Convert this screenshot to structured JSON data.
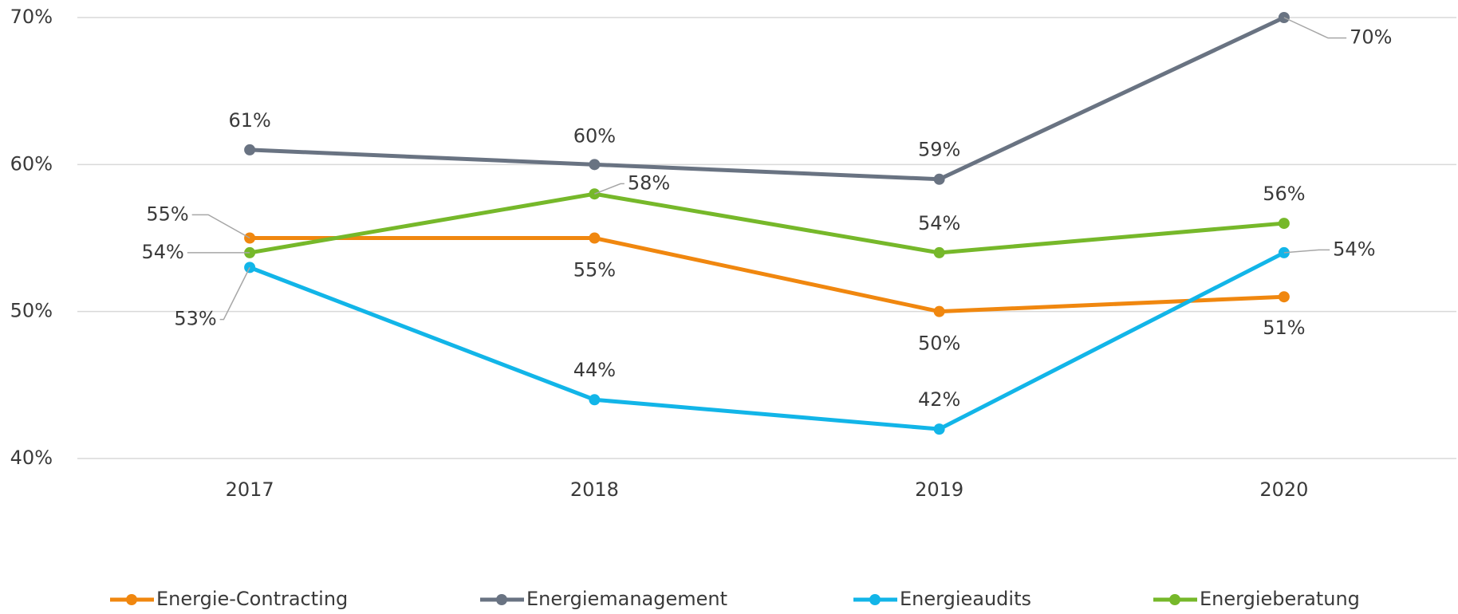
{
  "chart_data": {
    "type": "line",
    "categories": [
      "2017",
      "2018",
      "2019",
      "2020"
    ],
    "ylim": [
      40,
      70
    ],
    "yticks": [
      {
        "value": 40,
        "label": "40%"
      },
      {
        "value": 50,
        "label": "50%"
      },
      {
        "value": 60,
        "label": "60%"
      },
      {
        "value": 70,
        "label": "70%"
      }
    ],
    "grid": true,
    "legend": "bottom",
    "series": [
      {
        "name": "Energie-Contracting",
        "color": "#f0870f",
        "values": [
          55,
          55,
          50,
          51
        ],
        "value_labels": [
          "55%",
          "55%",
          "50%",
          "51%"
        ]
      },
      {
        "name": "Energiemanagement",
        "color": "#697382",
        "values": [
          61,
          60,
          59,
          70
        ],
        "value_labels": [
          "61%",
          "60%",
          "59%",
          "70%"
        ]
      },
      {
        "name": "Energieaudits",
        "color": "#12b5e8",
        "values": [
          53,
          44,
          42,
          54
        ],
        "value_labels": [
          "53%",
          "44%",
          "42%",
          "54%"
        ]
      },
      {
        "name": "Energieberatung",
        "color": "#76b82a",
        "values": [
          54,
          58,
          54,
          56
        ],
        "value_labels": [
          "54%",
          "58%",
          "54%",
          "56%"
        ]
      }
    ]
  }
}
